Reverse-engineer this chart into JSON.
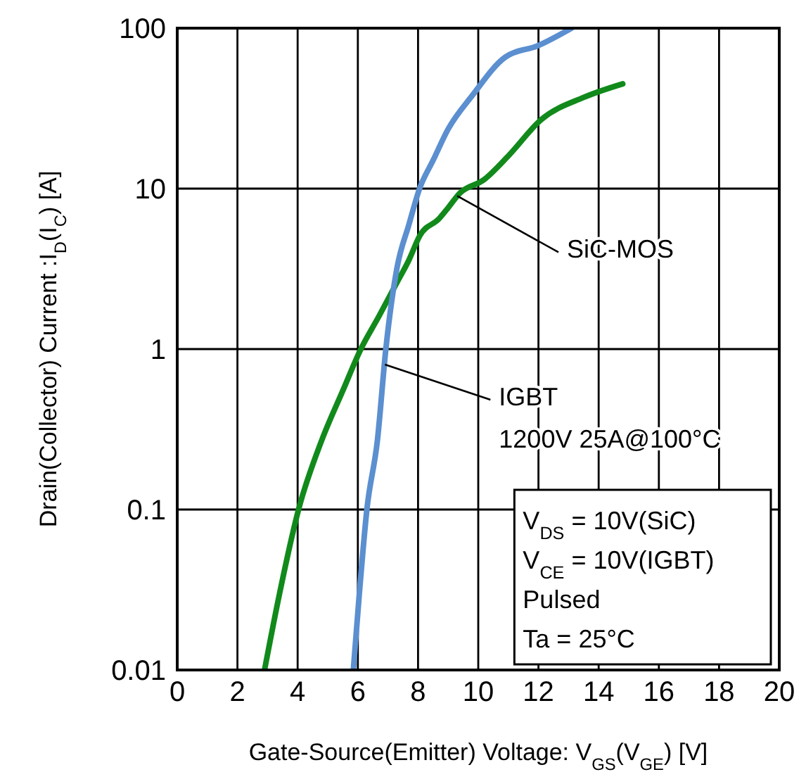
{
  "chart_data": {
    "type": "line",
    "xlabel": "Gate-Source(Emitter) Voltage: V$_{GS}$(V$_{GE}$) [V]",
    "ylabel": "Drain(Collector) Current :I$_{D}$(I$_{C}$) [A]",
    "log": "y",
    "grid": true,
    "marker": "none",
    "line_style": "solid",
    "xlim": [
      0,
      20
    ],
    "xticks": [
      0,
      2,
      4,
      6,
      8,
      10,
      12,
      14,
      16,
      18,
      20
    ],
    "ylim": [
      0.01,
      100
    ],
    "yticks": [
      0.01,
      0.1,
      1,
      10,
      100
    ],
    "series": [
      {
        "color": "#118a1b",
        "x": [
          2.9,
          3.4,
          4.03,
          4.8,
          5.5,
          6.1,
          6.7,
          7.3,
          7.7,
          8.06,
          8.7,
          9.0,
          9.37,
          10.2,
          11.0,
          12.1,
          13.5,
          14.8
        ],
        "values": [
          0.01,
          0.03,
          0.1,
          0.27,
          0.55,
          1,
          1.6,
          2.6,
          3.6,
          5.1,
          6.5,
          7.6,
          9.3,
          11.4,
          16,
          27,
          37,
          45
        ]
      },
      {
        "color": "#5b8fd0",
        "x": [
          5.85,
          6.05,
          6.3,
          6.65,
          6.93,
          7.3,
          7.7,
          8.05,
          8.5,
          9.0,
          9.8,
          10.9,
          12.0,
          13.1
        ],
        "values": [
          0.01,
          0.03,
          0.1,
          0.27,
          1,
          3.2,
          6,
          10,
          15,
          23.5,
          38,
          66,
          78,
          100
        ]
      }
    ],
    "annotations": [
      {
        "text": "SiC-MOS",
        "x": 9.3,
        "y": 9
      },
      {
        "text": "IGBT",
        "x": 6.9,
        "y": 0.8
      },
      "1200V  25A@100°C",
      "V$_{DS}$ = 10V(SiC)",
      "V$_{CE}$ = 10V(IGBT)",
      "Pulsed",
      "Ta = 25°C"
    ]
  }
}
